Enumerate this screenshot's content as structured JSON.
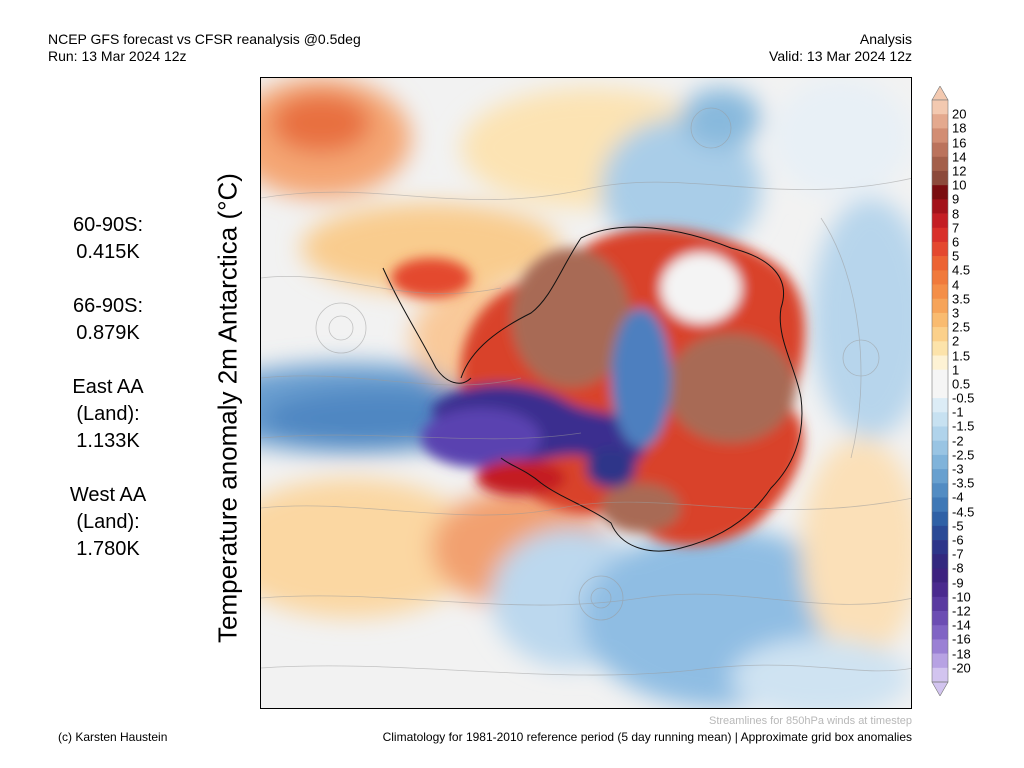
{
  "header": {
    "title_line1": "NCEP GFS forecast vs CFSR reanalysis @0.5deg",
    "title_line2": "Run: 13 Mar 2024 12z",
    "right_line1": "Analysis",
    "right_line2": "Valid: 13 Mar 2024 12z"
  },
  "vertical_title": "Temperature anomaly 2m Antarctica (°C)",
  "stats": [
    {
      "label": "60-90S:",
      "value": "0.415K"
    },
    {
      "label": "66-90S:",
      "value": "0.879K"
    },
    {
      "label": "East AA (Land):",
      "value": "1.133K"
    },
    {
      "label": "West AA (Land):",
      "value": "1.780K"
    }
  ],
  "colorbar": {
    "labels": [
      "20",
      "18",
      "16",
      "14",
      "12",
      "10",
      "9",
      "8",
      "7",
      "6",
      "5",
      "4.5",
      "4",
      "3.5",
      "3",
      "2.5",
      "2",
      "1.5",
      "1",
      "0.5",
      "-0.5",
      "-1",
      "-1.5",
      "-2",
      "-2.5",
      "-3",
      "-3.5",
      "-4",
      "-4.5",
      "-5",
      "-6",
      "-7",
      "-8",
      "-9",
      "-10",
      "-12",
      "-14",
      "-16",
      "-18",
      "-20"
    ],
    "colors": [
      "#f3c9b0",
      "#e4a98e",
      "#d28d73",
      "#bb735c",
      "#a35f4a",
      "#8c4a3b",
      "#7a0d10",
      "#a3121a",
      "#c41e24",
      "#d9302a",
      "#e4482f",
      "#ec6333",
      "#f07a3c",
      "#f48e48",
      "#f6a45a",
      "#f9bb70",
      "#fbd08a",
      "#fce3aa",
      "#fdf2d4",
      "#f5f5f5",
      "#f5f5f5",
      "#dcecf6",
      "#c7e1f1",
      "#b0d3eb",
      "#99c4e3",
      "#80b3da",
      "#68a0cf",
      "#528cc3",
      "#3f78b6",
      "#2f61a6",
      "#2a4a96",
      "#2d3589",
      "#33287f",
      "#3d227f",
      "#4a2a8e",
      "#5a3aa0",
      "#6c4db3",
      "#8064c4",
      "#9a80d4",
      "#b7a2e3",
      "#d2c4ef"
    ],
    "top_arrow_color": "#f3c9b0",
    "bottom_arrow_color": "#d2c4ef"
  },
  "streamlines_note": "Streamlines for 850hPa winds at timestep",
  "copyright": "(c) Karsten Haustein",
  "climatology_note": "Climatology for 1981-2010 reference period (5 day running mean) | Approximate grid box anomalies"
}
